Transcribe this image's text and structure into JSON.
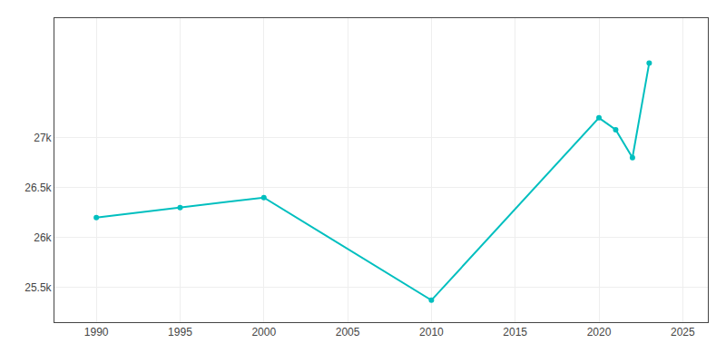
{
  "chart_data": {
    "type": "line",
    "x": [
      1990,
      1995,
      2000,
      2010,
      2020,
      2021,
      2022,
      2023
    ],
    "values": [
      26200,
      26300,
      26400,
      25370,
      27200,
      27080,
      26800,
      27750
    ],
    "color": "#00BFBF",
    "marker": "circle",
    "line_style": "solid",
    "xlim": [
      1987.5,
      2026.5
    ],
    "ylim": [
      25150,
      28200
    ],
    "xticks": [
      1990,
      1995,
      2000,
      2005,
      2010,
      2015,
      2020,
      2025
    ],
    "yticks": [
      {
        "value": 25500,
        "label": "25.5k"
      },
      {
        "value": 26000,
        "label": "26k"
      },
      {
        "value": 26500,
        "label": "26.5k"
      },
      {
        "value": 27000,
        "label": "27k"
      }
    ],
    "grid": true
  }
}
